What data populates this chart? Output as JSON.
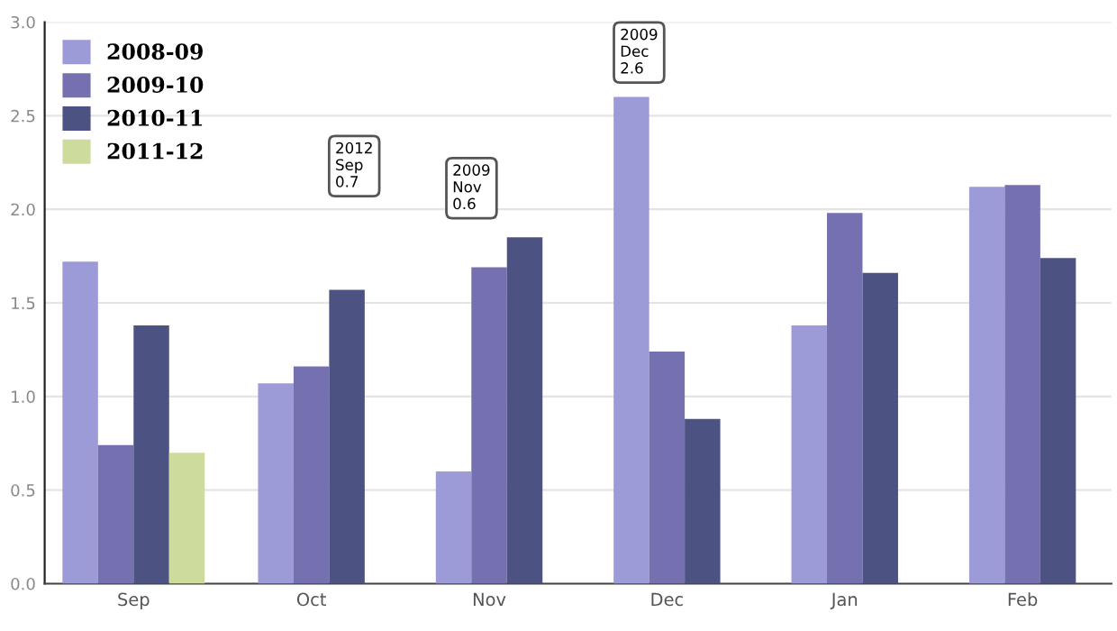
{
  "chart_data": {
    "type": "bar",
    "categories": [
      "Sep",
      "Oct",
      "Nov",
      "Dec",
      "Jan",
      "Feb"
    ],
    "series": [
      {
        "name": "2008-09",
        "color": "#9d9ad8",
        "values": [
          1.72,
          1.07,
          0.6,
          2.6,
          1.38,
          2.12
        ]
      },
      {
        "name": "2009-10",
        "color": "#7571b0",
        "values": [
          0.74,
          1.16,
          1.69,
          1.24,
          1.98,
          2.13
        ]
      },
      {
        "name": "2010-11",
        "color": "#4c5282",
        "values": [
          1.38,
          1.57,
          1.85,
          0.88,
          1.66,
          1.74
        ]
      },
      {
        "name": "2011-12",
        "color": "#cddc9c",
        "values": [
          0.7,
          null,
          null,
          null,
          null,
          null
        ]
      }
    ],
    "ylim": [
      0,
      3.0
    ],
    "yticks": [
      {
        "value": 0,
        "label": "0.0"
      },
      {
        "value": 0.5,
        "label": "0.5"
      },
      {
        "value": 1,
        "label": "1.0"
      },
      {
        "value": 1.5,
        "label": "1.5"
      },
      {
        "value": 2,
        "label": "2.0"
      },
      {
        "value": 2.5,
        "label": "2.5"
      },
      {
        "value": 3,
        "label": "3.0"
      }
    ],
    "grid": "y",
    "legend": "top left",
    "annotations": [
      "2012\nSep\n0.7",
      "2009\nNov\n0.6",
      "2009\nDec\n2.6"
    ]
  }
}
